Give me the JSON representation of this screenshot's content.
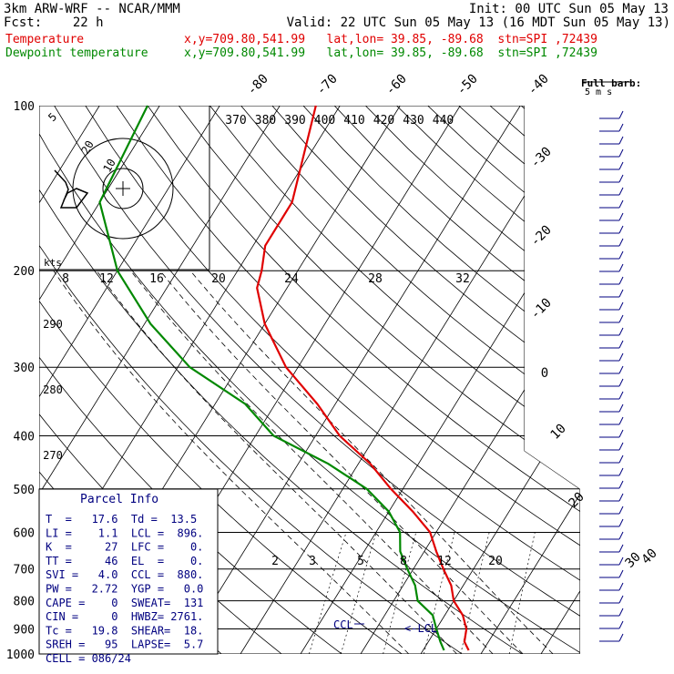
{
  "header": {
    "line1_left": "3km ARW-WRF -- NCAR/MMM",
    "line1_right": "Init: 00 UTC Sun 05 May 13",
    "line2_left": "Fcst:    22 h",
    "line2_right": "Valid: 22 UTC Sun 05 May 13 (16 MDT Sun 05 May 13)",
    "temp_label": "Temperature",
    "temp_info": "x,y=709.80,541.99   lat,lon= 39.85, -89.68  stn=SPI ,72439",
    "dew_label": "Dewpoint temperature",
    "dew_info": "x,y=709.80,541.99   lat,lon= 39.85, -89.68  stn=SPI ,72439",
    "full_barb_label": "Full barb:",
    "full_barb_units": "5 m s"
  },
  "chart_data": {
    "type": "line",
    "pressure_levels": [
      100,
      200,
      300,
      400,
      500,
      600,
      700,
      800,
      900,
      1000
    ],
    "pressure_ticks": [
      "100",
      "200",
      "300",
      "400",
      "500",
      "600",
      "700",
      "800",
      "900",
      "1000"
    ],
    "isotherm_labels": [
      "-80",
      "-70",
      "-60",
      "-50",
      "-40",
      "-30",
      "-20",
      "-10",
      "0",
      "10",
      "20",
      "30",
      "40"
    ],
    "mixing_ratio_labels": [
      "2",
      "3",
      "5",
      "8",
      "12",
      "20"
    ],
    "theta_e_labels": [
      "370",
      "380",
      "390",
      "400",
      "410",
      "420",
      "430",
      "440"
    ],
    "dry_adiabat_labels": [
      "290",
      "280",
      "270"
    ],
    "hodograph": {
      "units": "kts",
      "speed_labels": [
        "8",
        "12",
        "16",
        "20",
        "24",
        "28",
        "32"
      ],
      "ring_labels": [
        "5",
        "20",
        "10"
      ]
    },
    "series": [
      {
        "name": "Temperature",
        "color": "#e00000",
        "points": [
          {
            "p": 100,
            "t": -64
          },
          {
            "p": 150,
            "t": -58
          },
          {
            "p": 180,
            "t": -58
          },
          {
            "p": 200,
            "t": -56
          },
          {
            "p": 215,
            "t": -55
          },
          {
            "p": 250,
            "t": -50
          },
          {
            "p": 300,
            "t": -42
          },
          {
            "p": 350,
            "t": -33
          },
          {
            "p": 400,
            "t": -26
          },
          {
            "p": 450,
            "t": -18
          },
          {
            "p": 500,
            "t": -12
          },
          {
            "p": 550,
            "t": -6
          },
          {
            "p": 600,
            "t": -1
          },
          {
            "p": 650,
            "t": 2
          },
          {
            "p": 700,
            "t": 5
          },
          {
            "p": 750,
            "t": 8
          },
          {
            "p": 800,
            "t": 10
          },
          {
            "p": 850,
            "t": 13
          },
          {
            "p": 900,
            "t": 15
          },
          {
            "p": 950,
            "t": 16
          },
          {
            "p": 985,
            "t": 17.6
          }
        ]
      },
      {
        "name": "Dewpoint temperature",
        "color": "#008800",
        "points": [
          {
            "p": 100,
            "t": -92
          },
          {
            "p": 150,
            "t": -90
          },
          {
            "p": 200,
            "t": -80
          },
          {
            "p": 250,
            "t": -69
          },
          {
            "p": 300,
            "t": -58
          },
          {
            "p": 350,
            "t": -45
          },
          {
            "p": 400,
            "t": -37
          },
          {
            "p": 450,
            "t": -25
          },
          {
            "p": 500,
            "t": -16
          },
          {
            "p": 550,
            "t": -10
          },
          {
            "p": 600,
            "t": -6
          },
          {
            "p": 650,
            "t": -4
          },
          {
            "p": 700,
            "t": -1
          },
          {
            "p": 750,
            "t": 2
          },
          {
            "p": 800,
            "t": 4
          },
          {
            "p": 850,
            "t": 8
          },
          {
            "p": 900,
            "t": 10
          },
          {
            "p": 950,
            "t": 12
          },
          {
            "p": 985,
            "t": 13.5
          }
        ]
      }
    ],
    "annotations": {
      "ccl": "CCL",
      "lcl": "LCL"
    },
    "parcel_info": {
      "title": "Parcel Info",
      "rows": [
        "T  =   17.6  Td =  13.5",
        "LI =    1.1  LCL =  896.",
        "K  =     27  LFC =    0.",
        "TT =     46  EL  =    0.",
        "SVI =   4.0  CCL =  880.",
        "PW =   2.72  YGP =   0.0",
        "CAPE =    0  SWEAT=  131",
        "CIN =     0  HWBZ= 2761.",
        "Tc =   19.8  SHEAR=  18.",
        "SREH =   95  LAPSE=  5.7",
        "CELL = 086/24"
      ]
    }
  }
}
